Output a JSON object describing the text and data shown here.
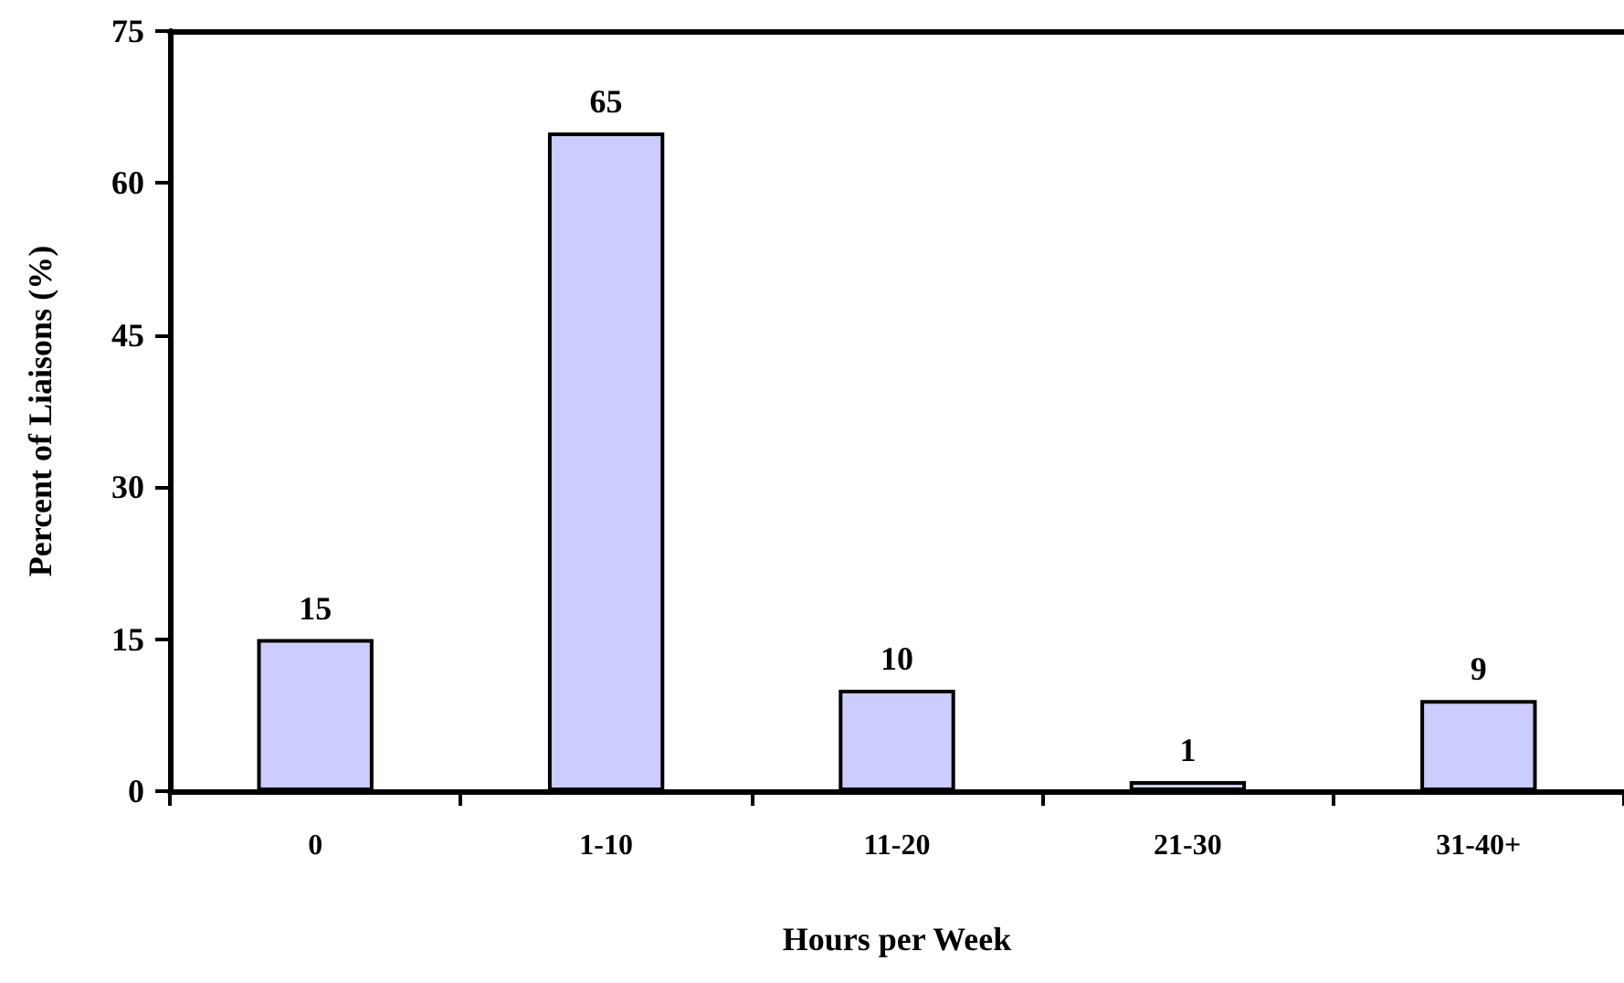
{
  "chart_data": {
    "type": "bar",
    "xlabel": "Hours per Week",
    "ylabel": "Percent of Liaisons (%)",
    "categories": [
      "0",
      "1-10",
      "11-20",
      "21-30",
      "31-40+"
    ],
    "values": [
      15,
      65,
      10,
      1,
      9
    ],
    "color": "#ccccff",
    "ylim": [
      0,
      75
    ],
    "yticks": [
      0,
      15,
      30,
      45,
      60,
      75
    ],
    "grid": false,
    "data_labels": true
  }
}
